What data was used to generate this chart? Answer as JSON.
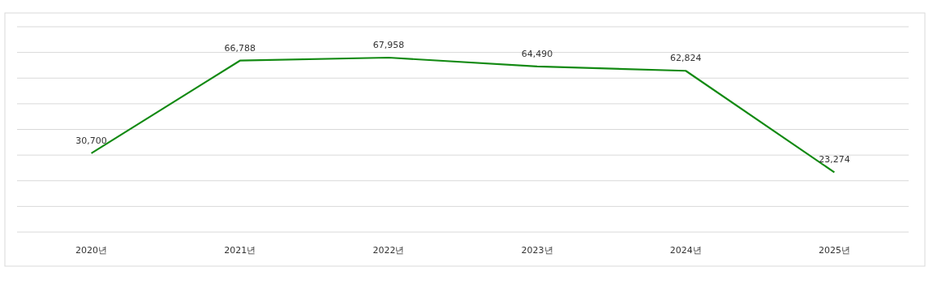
{
  "chart_data": {
    "type": "line",
    "categories": [
      "2020년",
      "2021년",
      "2022년",
      "2023년",
      "2024년",
      "2025년"
    ],
    "series": [
      {
        "color": "#138a13",
        "values": [
          30700,
          66788,
          67958,
          64490,
          62824,
          23274
        ],
        "value_labels": [
          "30,700",
          "66,788",
          "67,958",
          "64,490",
          "62,824",
          "23,274"
        ]
      }
    ],
    "tick_labels": "x",
    "grid": "y",
    "marker": "none",
    "line_style": "solid"
  }
}
